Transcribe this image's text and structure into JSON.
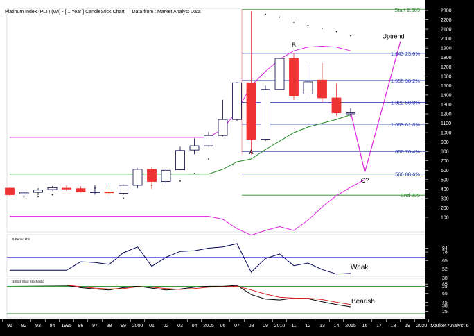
{
  "title": "Platinum Index (PLT) (WI) -  [ 1 Year ] CandleStick Chart — Data from : Market Analyst Data",
  "watermark": "Market Analyst 6",
  "colors": {
    "up_candle": "#ffffff",
    "down_candle": "#ee3333",
    "magenta": "#dd22dd",
    "green": "#228822",
    "fib_blue": "#2233aa",
    "rsi_line": "#000055",
    "axis_bg": "#000000",
    "axis_text": "#ffffff"
  },
  "chart_data": [
    {
      "type": "candlestick",
      "panel": "price",
      "title": "Platinum Index (PLT) (WI) -  [ 1 Year ] CandleStick Chart — Data from : Market Analyst Data",
      "x": [
        "1991",
        "1992",
        "1993",
        "1994",
        "1995",
        "1996",
        "1997",
        "1998",
        "1999",
        "2000",
        "2001",
        "2002",
        "2003",
        "2004",
        "2005",
        "2006",
        "2007",
        "2008",
        "2009",
        "2010",
        "2011",
        "2012",
        "2013",
        "2014",
        "2015"
      ],
      "x_tick_labels": [
        "91",
        "92",
        "93",
        "94",
        "1995",
        "96",
        "97",
        "98",
        "99",
        "2000",
        "01",
        "02",
        "03",
        "04",
        "2005",
        "06",
        "07",
        "08",
        "09",
        "2010",
        "11",
        "12",
        "13",
        "14",
        "2015",
        "16",
        "17",
        "18",
        "19",
        "2020",
        "2"
      ],
      "y_ticks": [
        100,
        200,
        300,
        400,
        500,
        600,
        700,
        800,
        900,
        1000,
        1100,
        1200,
        1300,
        1400,
        1500,
        1600,
        1700,
        1800,
        1900,
        2000,
        2100,
        2200,
        2300
      ],
      "ylim": [
        0,
        2320
      ],
      "candles": [
        {
          "year": "1991",
          "open": 410,
          "high": 420,
          "low": 330,
          "close": 340
        },
        {
          "year": "1992",
          "open": 350,
          "high": 385,
          "low": 330,
          "close": 365
        },
        {
          "year": "1993",
          "open": 365,
          "high": 410,
          "low": 335,
          "close": 390
        },
        {
          "year": "1994",
          "open": 395,
          "high": 430,
          "low": 385,
          "close": 415
        },
        {
          "year": "1995",
          "open": 410,
          "high": 440,
          "low": 380,
          "close": 400
        },
        {
          "year": "1996",
          "open": 405,
          "high": 430,
          "low": 360,
          "close": 370
        },
        {
          "year": "1997",
          "open": 370,
          "high": 440,
          "low": 340,
          "close": 370
        },
        {
          "year": "1998",
          "open": 370,
          "high": 440,
          "low": 330,
          "close": 360
        },
        {
          "year": "1999",
          "open": 355,
          "high": 450,
          "low": 340,
          "close": 440
        },
        {
          "year": "2000",
          "open": 440,
          "high": 620,
          "low": 410,
          "close": 610
        },
        {
          "year": "2001",
          "open": 610,
          "high": 640,
          "low": 400,
          "close": 480
        },
        {
          "year": "2002",
          "open": 480,
          "high": 610,
          "low": 450,
          "close": 600
        },
        {
          "year": "2003",
          "open": 605,
          "high": 850,
          "low": 600,
          "close": 810
        },
        {
          "year": "2004",
          "open": 815,
          "high": 940,
          "low": 770,
          "close": 860
        },
        {
          "year": "2005",
          "open": 860,
          "high": 1010,
          "low": 850,
          "close": 970
        },
        {
          "year": "2006",
          "open": 970,
          "high": 1350,
          "low": 960,
          "close": 1140
        },
        {
          "year": "2007",
          "open": 1140,
          "high": 1540,
          "low": 1120,
          "close": 1530
        },
        {
          "year": "2008",
          "open": 1530,
          "high": 2290,
          "low": 770,
          "close": 930
        },
        {
          "year": "2009",
          "open": 930,
          "high": 1500,
          "low": 910,
          "close": 1460
        },
        {
          "year": "2010",
          "open": 1460,
          "high": 1790,
          "low": 1460,
          "close": 1790
        },
        {
          "year": "2011",
          "open": 1790,
          "high": 1850,
          "low": 1350,
          "close": 1390
        },
        {
          "year": "2012",
          "open": 1410,
          "high": 1720,
          "low": 1390,
          "close": 1540
        },
        {
          "year": "2013",
          "open": 1560,
          "high": 1740,
          "low": 1320,
          "close": 1370
        },
        {
          "year": "2014",
          "open": 1370,
          "high": 1520,
          "low": 1180,
          "close": 1210
        },
        {
          "year": "2015",
          "open": 1200,
          "high": 1260,
          "low": 1170,
          "close": 1210
        }
      ],
      "fib_levels": [
        {
          "value": 2309,
          "label": "Start 2.309",
          "color": "green"
        },
        {
          "value": 1843,
          "label": "1.843 23,6%",
          "color": "fib_blue"
        },
        {
          "value": 1555,
          "label": "1.555 38,2%",
          "color": "fib_blue"
        },
        {
          "value": 1322,
          "label": "1.322 50,0%",
          "color": "fib_blue"
        },
        {
          "value": 1089,
          "label": "1.089 61,8%",
          "color": "fib_blue"
        },
        {
          "value": 800,
          "label": "800 76,4%",
          "color": "fib_blue"
        },
        {
          "value": 560,
          "label": "560 88,6%",
          "color": "fib_blue"
        },
        {
          "value": 335,
          "label": "End 335",
          "color": "green"
        }
      ],
      "annotations": [
        {
          "text": "A",
          "x": "2008",
          "y": 770
        },
        {
          "text": "B",
          "x": "2011",
          "y": 1910
        },
        {
          "text": "C?",
          "x": "2016",
          "y": 470
        },
        {
          "text": "Uptrend",
          "x": "2018",
          "y": 2000
        }
      ],
      "projection": [
        {
          "x": "2015",
          "y": 1220
        },
        {
          "x": "2016",
          "y": 580
        },
        {
          "x": "2018.5",
          "y": 1970
        }
      ],
      "bollinger_upper": [
        {
          "x": "1991",
          "y": 950
        },
        {
          "x": "2005",
          "y": 950
        },
        {
          "x": "2006",
          "y": 1040
        },
        {
          "x": "2007",
          "y": 1230
        },
        {
          "x": "2008",
          "y": 1500
        },
        {
          "x": "2009",
          "y": 1650
        },
        {
          "x": "2010",
          "y": 1780
        },
        {
          "x": "2011",
          "y": 1870
        },
        {
          "x": "2012",
          "y": 1910
        },
        {
          "x": "2013",
          "y": 1920
        },
        {
          "x": "2014",
          "y": 1910
        },
        {
          "x": "2015",
          "y": 1870
        }
      ],
      "bollinger_mid": [
        {
          "x": "1991",
          "y": 560
        },
        {
          "x": "2005",
          "y": 560
        },
        {
          "x": "2006",
          "y": 610
        },
        {
          "x": "2007",
          "y": 690
        },
        {
          "x": "2008",
          "y": 720
        },
        {
          "x": "2009",
          "y": 820
        },
        {
          "x": "2010",
          "y": 910
        },
        {
          "x": "2011",
          "y": 1000
        },
        {
          "x": "2012",
          "y": 1060
        },
        {
          "x": "2013",
          "y": 1100
        },
        {
          "x": "2014",
          "y": 1140
        },
        {
          "x": "2015",
          "y": 1190
        }
      ],
      "bollinger_lower": [
        {
          "x": "1991",
          "y": 110
        },
        {
          "x": "2005",
          "y": 110
        },
        {
          "x": "2006",
          "y": 80
        },
        {
          "x": "2007",
          "y": -20
        },
        {
          "x": "2008",
          "y": -90
        },
        {
          "x": "2009",
          "y": -40
        },
        {
          "x": "2010",
          "y": 0
        },
        {
          "x": "2011",
          "y": -40
        },
        {
          "x": "2012",
          "y": 70
        },
        {
          "x": "2013",
          "y": 210
        },
        {
          "x": "2014",
          "y": 330
        },
        {
          "x": "2015",
          "y": 420
        },
        {
          "x": "2016",
          "y": 500
        }
      ],
      "psar_dots": [
        {
          "x": "1991",
          "y": 360
        },
        {
          "x": "1992",
          "y": 315
        },
        {
          "x": "1993",
          "y": 320
        },
        {
          "x": "1994",
          "y": 340
        },
        {
          "x": "1997",
          "y": 410
        },
        {
          "x": "1999",
          "y": 305
        },
        {
          "x": "2001",
          "y": 440
        },
        {
          "x": "2003",
          "y": 485
        },
        {
          "x": "2004",
          "y": 565
        },
        {
          "x": "2005",
          "y": 720
        },
        {
          "x": "2009",
          "y": 2260
        },
        {
          "x": "2010",
          "y": 2230
        },
        {
          "x": "2011",
          "y": 2175
        },
        {
          "x": "2012",
          "y": 2140
        },
        {
          "x": "2013",
          "y": 2110
        },
        {
          "x": "2014",
          "y": 2075
        },
        {
          "x": "2015",
          "y": 2030
        }
      ]
    },
    {
      "type": "line",
      "panel": "rsi",
      "title": "5 Period RSI",
      "x": [
        "1991",
        "1995",
        "1996",
        "1997",
        "1998",
        "1999",
        "2000",
        "2001",
        "2002",
        "2003",
        "2004",
        "2005",
        "2006",
        "2007",
        "2008",
        "2009",
        "2010",
        "2011",
        "2012",
        "2013",
        "2014",
        "2015"
      ],
      "values": [
        50,
        50,
        63,
        62,
        59,
        77,
        86,
        56,
        70,
        79,
        80,
        84,
        86,
        91,
        47,
        68,
        75,
        57,
        61,
        51,
        44,
        45
      ],
      "y_ticks": [
        25,
        38,
        52,
        65,
        78,
        84
      ],
      "ylim": [
        0,
        100
      ],
      "reference_lines": [
        70
      ],
      "annotations": [
        {
          "text": "Weak"
        }
      ]
    },
    {
      "type": "line",
      "panel": "stochastic",
      "title": "10/3/3 Slow Stochastic",
      "x": [
        "1991",
        "1995",
        "1996",
        "1997",
        "1998",
        "1999",
        "2000",
        "2001",
        "2002",
        "2003",
        "2004",
        "2005",
        "2006",
        "2007",
        "2008",
        "2009",
        "2010",
        "2011",
        "2012",
        "2013",
        "2014",
        "2015"
      ],
      "series": [
        {
          "color": "black",
          "values": [
            83,
            82,
            77,
            74,
            72,
            77,
            80,
            76,
            72,
            74,
            78,
            80,
            80,
            82,
            62,
            52,
            50,
            54,
            53,
            46,
            40,
            35
          ]
        },
        {
          "color": "red",
          "values": [
            83,
            83,
            79,
            76,
            74,
            75,
            79,
            78,
            75,
            73,
            75,
            78,
            79,
            80,
            72,
            63,
            56,
            54,
            54,
            51,
            45,
            40
          ]
        }
      ],
      "y_ticks": [
        25,
        38,
        45,
        65,
        85
      ],
      "ylim": [
        0,
        100
      ],
      "reference_lines": [
        80,
        20
      ],
      "annotations": [
        {
          "text": "Bearish"
        }
      ]
    }
  ]
}
